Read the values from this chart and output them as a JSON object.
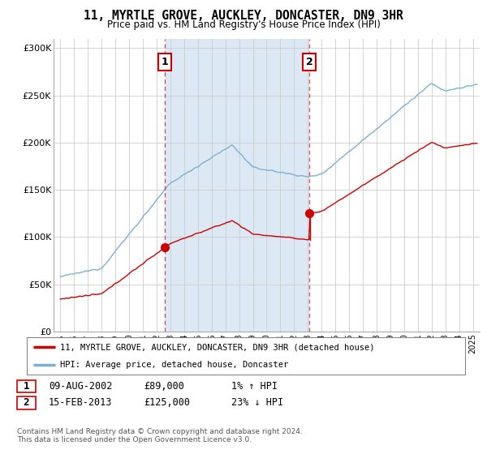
{
  "title": "11, MYRTLE GROVE, AUCKLEY, DONCASTER, DN9 3HR",
  "subtitle": "Price paid vs. HM Land Registry's House Price Index (HPI)",
  "bg_color": "#ffffff",
  "plot_bg_color": "#ffffff",
  "line1_color": "#cc0000",
  "line2_color": "#7ab0d4",
  "shaded_region_color": "#dce9f5",
  "marker_color": "#cc0000",
  "vline_color": "#cc0000",
  "purchase1_date": "09-AUG-2002",
  "purchase1_price": 89000,
  "purchase1_hpi": "1% ↑ HPI",
  "purchase1_x": 2002.6,
  "purchase2_date": "15-FEB-2013",
  "purchase2_price": 125000,
  "purchase2_hpi": "23% ↓ HPI",
  "purchase2_x": 2013.12,
  "ylim": [
    0,
    310000
  ],
  "xlim_start": 1994.5,
  "xlim_end": 2025.5,
  "ylabel_ticks": [
    0,
    50000,
    100000,
    150000,
    200000,
    250000,
    300000
  ],
  "ylabel_labels": [
    "£0",
    "£50K",
    "£100K",
    "£150K",
    "£200K",
    "£250K",
    "£300K"
  ],
  "xlabel_ticks": [
    1995,
    1996,
    1997,
    1998,
    1999,
    2000,
    2001,
    2002,
    2003,
    2004,
    2005,
    2006,
    2007,
    2008,
    2009,
    2010,
    2011,
    2012,
    2013,
    2014,
    2015,
    2016,
    2017,
    2018,
    2019,
    2020,
    2021,
    2022,
    2023,
    2024,
    2025
  ],
  "legend_label1": "11, MYRTLE GROVE, AUCKLEY, DONCASTER, DN9 3HR (detached house)",
  "legend_label2": "HPI: Average price, detached house, Doncaster",
  "footer": "Contains HM Land Registry data © Crown copyright and database right 2024.\nThis data is licensed under the Open Government Licence v3.0."
}
